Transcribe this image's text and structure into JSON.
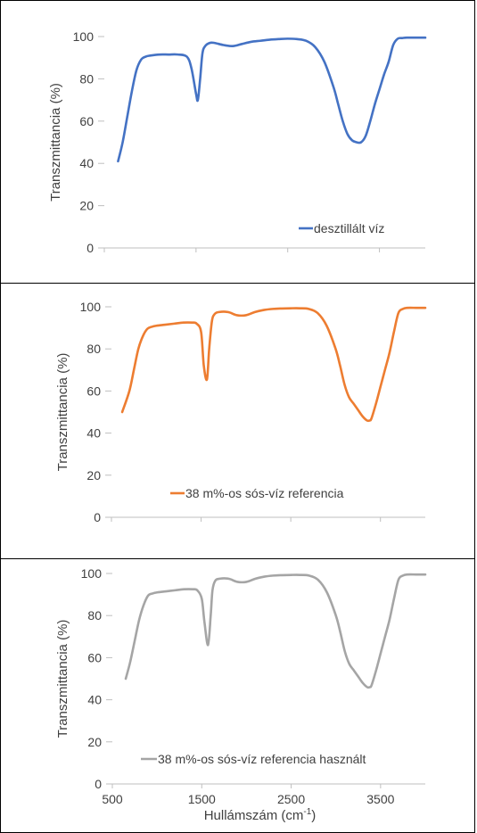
{
  "chart_data": [
    {
      "type": "line",
      "ylabel": "Transzmittancia (%)",
      "xlabel": "",
      "xlim": [
        500,
        4000
      ],
      "ylim": [
        0,
        100
      ],
      "yticks": [
        0,
        20,
        40,
        60,
        80,
        100
      ],
      "xticks": [
        500,
        1500,
        2500,
        3500
      ],
      "show_xtick_labels": false,
      "grid": false,
      "legend_position": "bottom-right",
      "series": [
        {
          "name": "desztillált víz",
          "color": "#4472C4",
          "x": [
            650,
            700,
            750,
            800,
            850,
            900,
            950,
            1000,
            1100,
            1200,
            1300,
            1400,
            1450,
            1500,
            1520,
            1545,
            1570,
            1600,
            1650,
            1700,
            1800,
            1900,
            2000,
            2100,
            2200,
            2300,
            2400,
            2500,
            2600,
            2700,
            2800,
            2900,
            3000,
            3050,
            3100,
            3150,
            3200,
            3250,
            3300,
            3350,
            3400,
            3450,
            3500,
            3550,
            3600,
            3650,
            3700,
            3750,
            3800,
            3900,
            4000
          ],
          "y": [
            41,
            50,
            62,
            74,
            84,
            89,
            90.5,
            91,
            91.5,
            91.5,
            91.5,
            90.5,
            85,
            73,
            70,
            80,
            92,
            95.5,
            97,
            97,
            96,
            95.5,
            96.5,
            97.5,
            98,
            98.5,
            98.8,
            99,
            98.8,
            98,
            95,
            88,
            76,
            68,
            60,
            54,
            51,
            50,
            50,
            53,
            60,
            68,
            75,
            82,
            88,
            96,
            99,
            99.3,
            99.5,
            99.5,
            99.5
          ]
        }
      ]
    },
    {
      "type": "line",
      "ylabel": "Transzmittancia (%)",
      "xlabel": "",
      "xlim": [
        500,
        4000
      ],
      "ylim": [
        0,
        100
      ],
      "yticks": [
        0,
        20,
        40,
        60,
        80,
        100
      ],
      "xticks": [
        500,
        1500,
        2500,
        3500
      ],
      "show_xtick_labels": false,
      "grid": false,
      "legend_position": "bottom-center",
      "series": [
        {
          "name": "38 m%-os sós-víz referencia",
          "color": "#ED7D31",
          "x": [
            620,
            700,
            750,
            800,
            850,
            900,
            950,
            1000,
            1100,
            1200,
            1300,
            1400,
            1450,
            1500,
            1530,
            1565,
            1590,
            1620,
            1650,
            1700,
            1800,
            1900,
            2000,
            2100,
            2200,
            2300,
            2400,
            2500,
            2600,
            2700,
            2800,
            2900,
            3000,
            3050,
            3100,
            3150,
            3200,
            3250,
            3300,
            3350,
            3380,
            3400,
            3450,
            3500,
            3550,
            3600,
            3650,
            3700,
            3750,
            3800,
            3900,
            4000
          ],
          "y": [
            50,
            60,
            70,
            80,
            86,
            89.5,
            90.5,
            91,
            91.5,
            92,
            92.5,
            92.5,
            92,
            88,
            72,
            65.5,
            80,
            93,
            96.5,
            97.5,
            97.5,
            96,
            96,
            97.5,
            98.5,
            99,
            99.2,
            99.3,
            99.3,
            99,
            97,
            91,
            80,
            72,
            63,
            57,
            54,
            51,
            48,
            46,
            46,
            47,
            54,
            62,
            70,
            78,
            88,
            97,
            99,
            99.5,
            99.5,
            99.5
          ]
        }
      ]
    },
    {
      "type": "line",
      "ylabel": "Transzmittancia (%)",
      "xlabel": "Hullámszám (cm",
      "xlabel_sup": "-1",
      "xlabel_end": ")",
      "xlim": [
        500,
        4000
      ],
      "ylim": [
        0,
        100
      ],
      "yticks": [
        0,
        20,
        40,
        60,
        80,
        100
      ],
      "xticks": [
        500,
        1500,
        2500,
        3500
      ],
      "show_xtick_labels": true,
      "grid": false,
      "legend_position": "bottom-center",
      "series": [
        {
          "name": "38 m%-os sós-víz referencia használt",
          "color": "#A5A5A5",
          "x": [
            650,
            700,
            750,
            800,
            850,
            900,
            950,
            1000,
            1100,
            1200,
            1300,
            1400,
            1450,
            1500,
            1530,
            1570,
            1600,
            1620,
            1650,
            1700,
            1800,
            1900,
            2000,
            2100,
            2200,
            2300,
            2400,
            2500,
            2600,
            2700,
            2800,
            2900,
            3000,
            3050,
            3100,
            3150,
            3200,
            3250,
            3300,
            3350,
            3380,
            3400,
            3450,
            3500,
            3550,
            3600,
            3650,
            3700,
            3750,
            3800,
            3900,
            4000
          ],
          "y": [
            50,
            58,
            68,
            78,
            85,
            89.5,
            90.5,
            91,
            91.5,
            92,
            92.5,
            92.5,
            92,
            88,
            77,
            66,
            80,
            92,
            96.5,
            97.5,
            97.5,
            96,
            96,
            97.5,
            98.5,
            99,
            99.2,
            99.3,
            99.3,
            99,
            97,
            91,
            80,
            72,
            63,
            57,
            54,
            51,
            48,
            46,
            46,
            47,
            54,
            62,
            70,
            78,
            88,
            97,
            99,
            99.5,
            99.5,
            99.5
          ]
        }
      ]
    }
  ]
}
